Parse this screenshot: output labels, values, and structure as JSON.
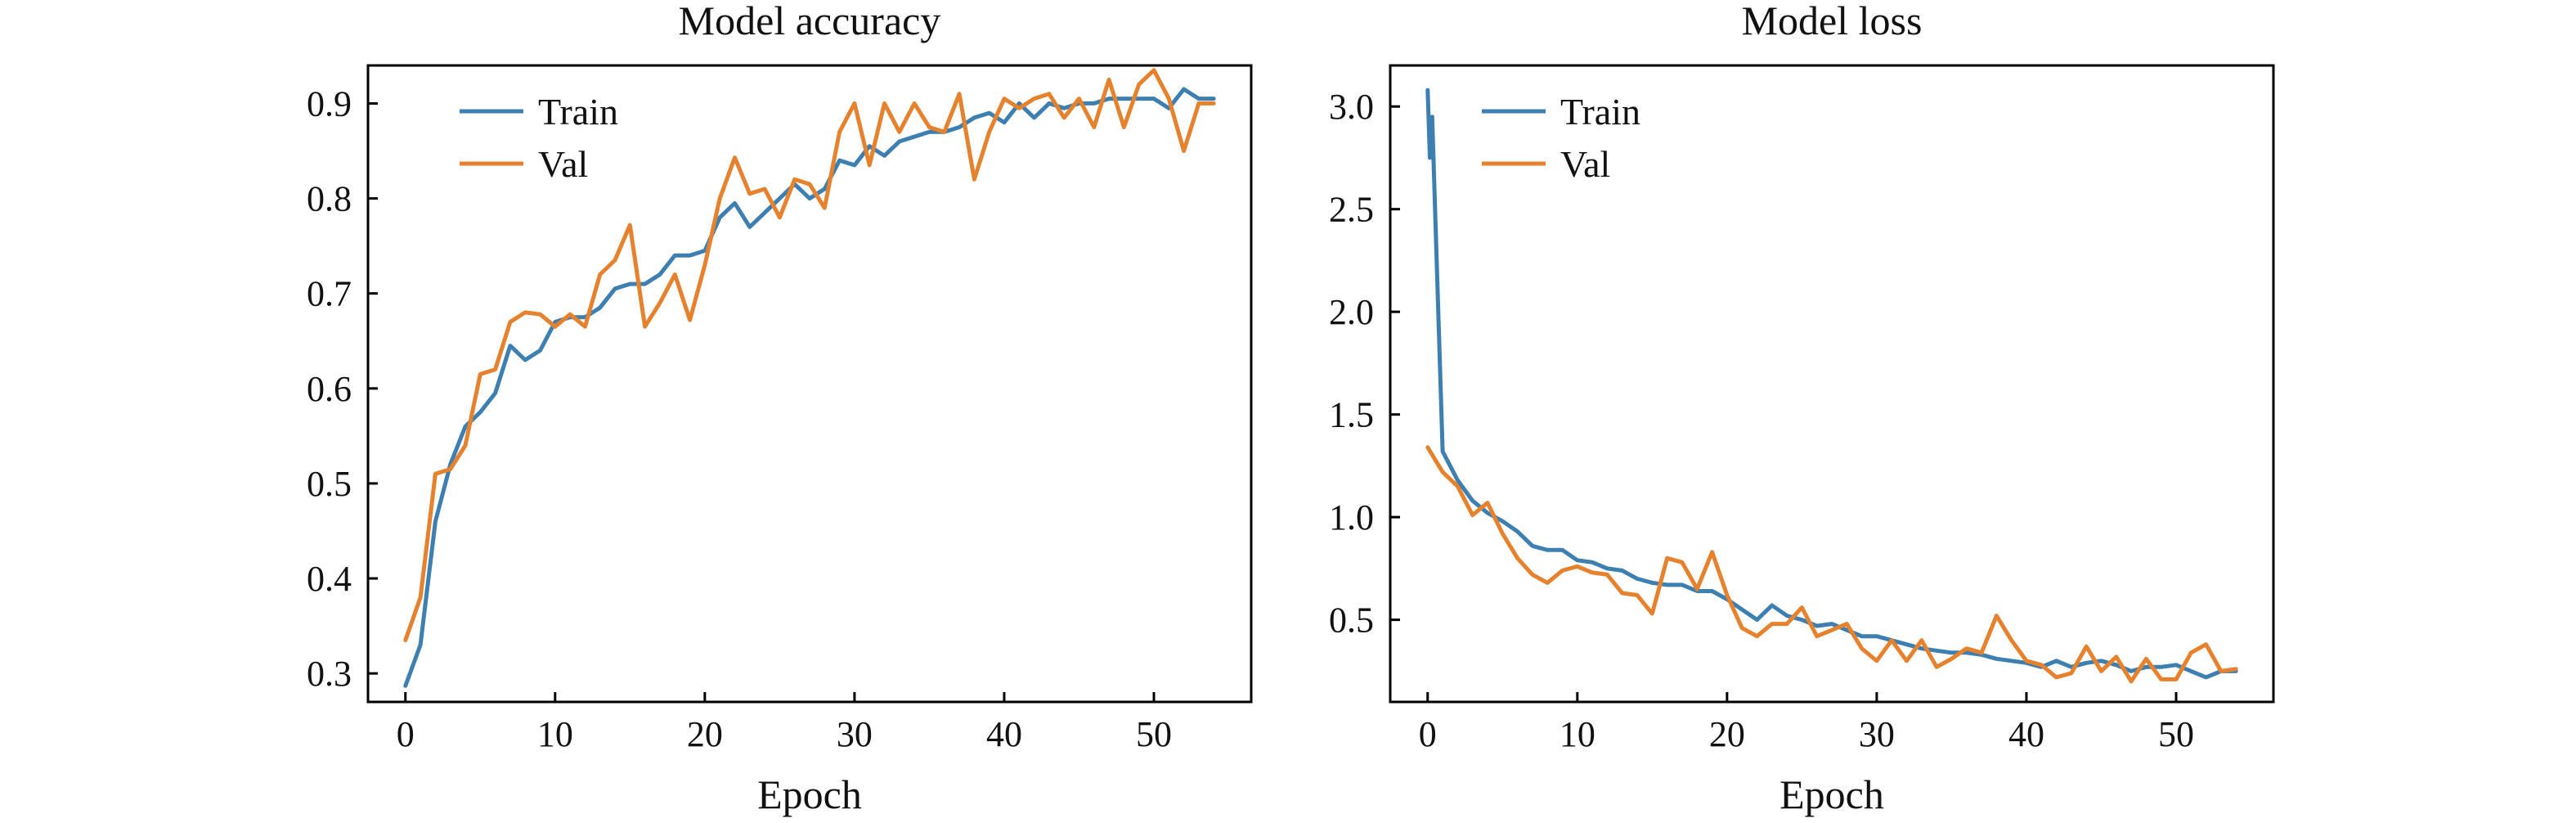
{
  "colors": {
    "train": "#3d7fb0",
    "val": "#e6822d"
  },
  "chart_data": [
    {
      "type": "line",
      "title": "Model accuracy",
      "xlabel": "Epoch",
      "ylabel": "",
      "xlim": [
        -2.5,
        56.5
      ],
      "ylim": [
        0.27,
        0.94
      ],
      "xticks": [
        0,
        10,
        20,
        30,
        40,
        50
      ],
      "yticks": [
        0.3,
        0.4,
        0.5,
        0.6,
        0.7,
        0.8,
        0.9
      ],
      "ytick_labels": [
        "0.3",
        "0.4",
        "0.5",
        "0.6",
        "0.7",
        "0.8",
        "0.9"
      ],
      "grid": false,
      "legend_position": "top-left",
      "x": [
        0,
        1,
        2,
        3,
        4,
        5,
        6,
        7,
        8,
        9,
        10,
        11,
        12,
        13,
        14,
        15,
        16,
        17,
        18,
        19,
        20,
        21,
        22,
        23,
        24,
        25,
        26,
        27,
        28,
        29,
        30,
        31,
        32,
        33,
        34,
        35,
        36,
        37,
        38,
        39,
        40,
        41,
        42,
        43,
        44,
        45,
        46,
        47,
        48,
        49,
        50,
        51,
        52,
        53,
        54
      ],
      "series": [
        {
          "name": "Train",
          "color": "#3d7fb0",
          "values": [
            0.287,
            0.33,
            0.46,
            0.52,
            0.56,
            0.575,
            0.595,
            0.645,
            0.63,
            0.64,
            0.67,
            0.675,
            0.675,
            0.685,
            0.705,
            0.71,
            0.71,
            0.72,
            0.74,
            0.74,
            0.745,
            0.78,
            0.795,
            0.77,
            0.785,
            0.8,
            0.815,
            0.8,
            0.81,
            0.84,
            0.835,
            0.855,
            0.845,
            0.86,
            0.865,
            0.87,
            0.87,
            0.875,
            0.885,
            0.89,
            0.88,
            0.9,
            0.885,
            0.9,
            0.895,
            0.9,
            0.9,
            0.905,
            0.905,
            0.905,
            0.905,
            0.895,
            0.915,
            0.905,
            0.905
          ]
        },
        {
          "name": "Val",
          "color": "#e6822d",
          "values": [
            0.335,
            0.38,
            0.51,
            0.515,
            0.54,
            0.615,
            0.62,
            0.67,
            0.68,
            0.678,
            0.665,
            0.678,
            0.665,
            0.72,
            0.735,
            0.772,
            0.665,
            0.69,
            0.72,
            0.672,
            0.73,
            0.8,
            0.843,
            0.805,
            0.81,
            0.78,
            0.82,
            0.815,
            0.79,
            0.87,
            0.9,
            0.835,
            0.9,
            0.87,
            0.9,
            0.875,
            0.87,
            0.91,
            0.82,
            0.87,
            0.905,
            0.895,
            0.905,
            0.91,
            0.885,
            0.905,
            0.875,
            0.925,
            0.875,
            0.92,
            0.935,
            0.905,
            0.85,
            0.9,
            0.9
          ]
        }
      ]
    },
    {
      "type": "line",
      "title": "Model loss",
      "xlabel": "Epoch",
      "ylabel": "",
      "xlim": [
        -2.5,
        56.5
      ],
      "ylim": [
        0.1,
        3.2
      ],
      "xticks": [
        0,
        10,
        20,
        30,
        40,
        50
      ],
      "yticks": [
        0.5,
        1.0,
        1.5,
        2.0,
        2.5,
        3.0
      ],
      "ytick_labels": [
        "0.5",
        "1.0",
        "1.5",
        "2.0",
        "2.5",
        "3.0"
      ],
      "grid": false,
      "legend_position": "top-left",
      "x": [
        0,
        0.15,
        0.3,
        1,
        2,
        3,
        4,
        5,
        6,
        7,
        8,
        9,
        10,
        11,
        12,
        13,
        14,
        15,
        16,
        17,
        18,
        19,
        20,
        21,
        22,
        23,
        24,
        25,
        26,
        27,
        28,
        29,
        30,
        31,
        32,
        33,
        34,
        35,
        36,
        37,
        38,
        39,
        40,
        41,
        42,
        43,
        44,
        45,
        46,
        47,
        48,
        49,
        50,
        51,
        52,
        53,
        54
      ],
      "series": [
        {
          "name": "Train",
          "color": "#3d7fb0",
          "x": [
            0,
            0.15,
            0.3,
            1,
            2,
            3,
            4,
            5,
            6,
            7,
            8,
            9,
            10,
            11,
            12,
            13,
            14,
            15,
            16,
            17,
            18,
            19,
            20,
            21,
            22,
            23,
            24,
            25,
            26,
            27,
            28,
            29,
            30,
            31,
            32,
            33,
            34,
            35,
            36,
            37,
            38,
            39,
            40,
            41,
            42,
            43,
            44,
            45,
            46,
            47,
            48,
            49,
            50,
            51,
            52,
            53,
            54
          ],
          "values": [
            3.08,
            2.75,
            2.95,
            1.32,
            1.18,
            1.08,
            1.02,
            0.98,
            0.93,
            0.86,
            0.84,
            0.84,
            0.79,
            0.78,
            0.75,
            0.74,
            0.7,
            0.68,
            0.67,
            0.67,
            0.64,
            0.64,
            0.6,
            0.55,
            0.5,
            0.57,
            0.52,
            0.5,
            0.47,
            0.48,
            0.45,
            0.42,
            0.42,
            0.4,
            0.38,
            0.36,
            0.35,
            0.34,
            0.34,
            0.33,
            0.31,
            0.3,
            0.29,
            0.27,
            0.3,
            0.27,
            0.29,
            0.3,
            0.28,
            0.25,
            0.27,
            0.27,
            0.28,
            0.25,
            0.22,
            0.25,
            0.25
          ]
        },
        {
          "name": "Val",
          "color": "#e6822d",
          "x": [
            0,
            1,
            2,
            3,
            4,
            5,
            6,
            7,
            8,
            9,
            10,
            11,
            12,
            13,
            14,
            15,
            16,
            17,
            18,
            19,
            20,
            21,
            22,
            23,
            24,
            25,
            26,
            27,
            28,
            29,
            30,
            31,
            32,
            33,
            34,
            35,
            36,
            37,
            38,
            39,
            40,
            41,
            42,
            43,
            44,
            45,
            46,
            47,
            48,
            49,
            50,
            51,
            52,
            53,
            54
          ],
          "values": [
            1.34,
            1.22,
            1.15,
            1.01,
            1.07,
            0.92,
            0.8,
            0.72,
            0.68,
            0.74,
            0.76,
            0.73,
            0.72,
            0.63,
            0.62,
            0.53,
            0.8,
            0.78,
            0.65,
            0.83,
            0.62,
            0.46,
            0.42,
            0.48,
            0.48,
            0.56,
            0.42,
            0.45,
            0.48,
            0.36,
            0.3,
            0.4,
            0.3,
            0.4,
            0.27,
            0.31,
            0.36,
            0.34,
            0.52,
            0.4,
            0.3,
            0.28,
            0.22,
            0.24,
            0.37,
            0.25,
            0.32,
            0.2,
            0.31,
            0.21,
            0.21,
            0.34,
            0.38,
            0.25,
            0.26
          ]
        }
      ]
    }
  ]
}
